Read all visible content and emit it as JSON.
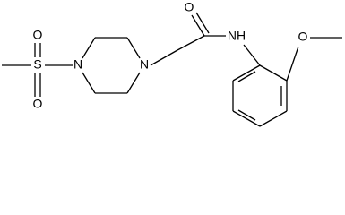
{
  "atoms": [
    {
      "label": "S"
    },
    {
      "label": "O"
    },
    {
      "label": "O"
    },
    {
      "label": "N"
    },
    {
      "label": "N"
    },
    {
      "label": "O"
    },
    {
      "label": "NH"
    },
    {
      "label": "O"
    }
  ]
}
